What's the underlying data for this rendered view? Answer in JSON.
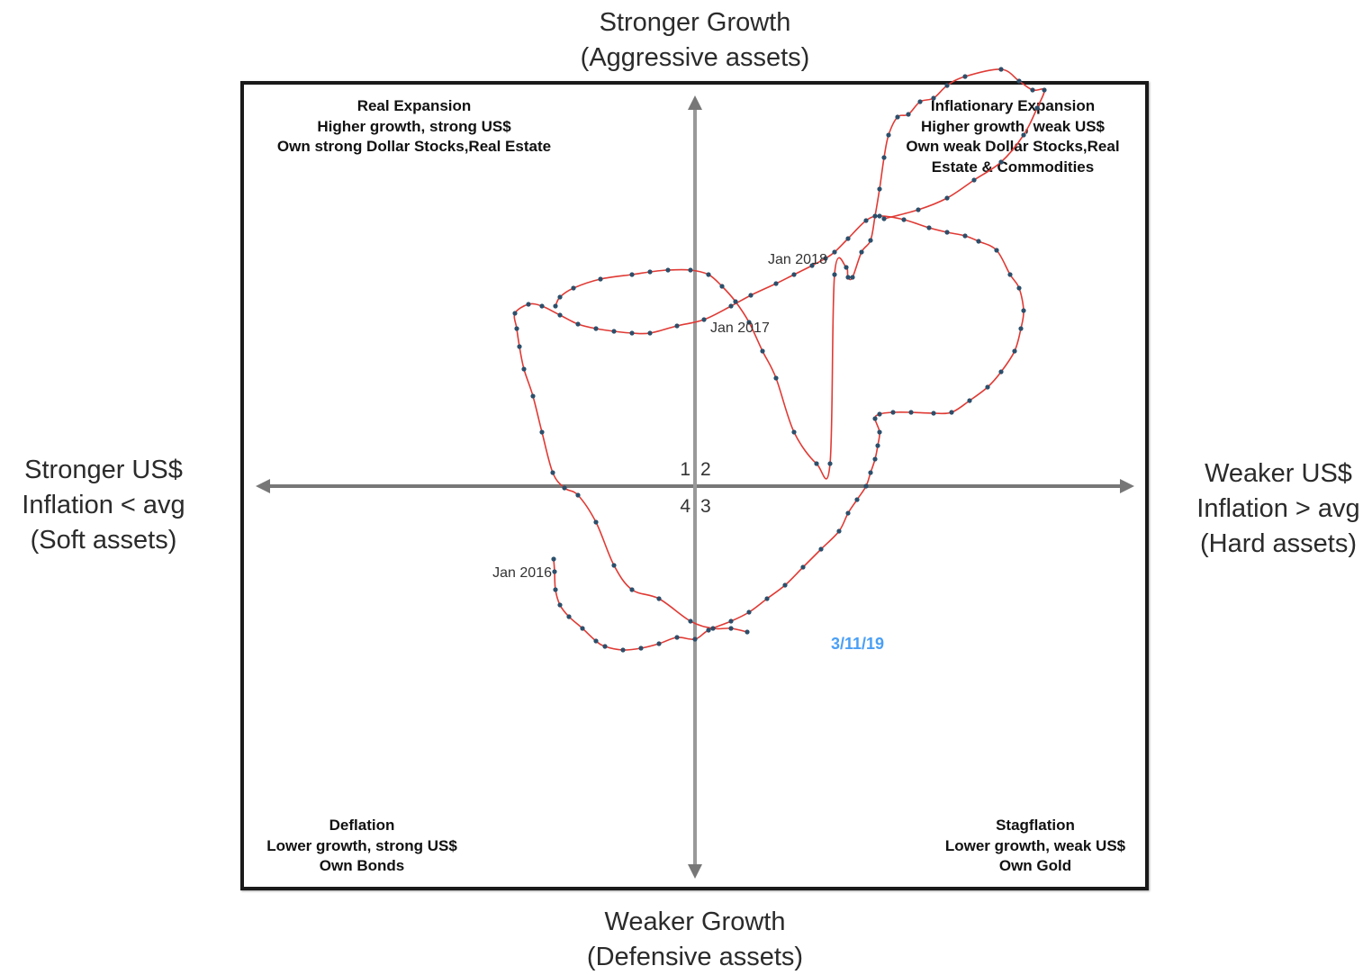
{
  "axes": {
    "top": {
      "line1": "Stronger Growth",
      "line2": "(Aggressive assets)"
    },
    "bottom": {
      "line1": "Weaker Growth",
      "line2": "(Defensive assets)"
    },
    "left": {
      "line1": "Stronger US$",
      "line2": "Inflation < avg",
      "line3": "(Soft assets)"
    },
    "right": {
      "line1": "Weaker US$",
      "line2": "Inflation > avg",
      "line3": "(Hard assets)"
    }
  },
  "quadrants": {
    "top_left": {
      "title": "Real Expansion",
      "line2": "Higher growth, strong US$",
      "line3": "Own strong Dollar Stocks,Real Estate"
    },
    "top_right": {
      "title": "Inflationary Expansion",
      "line2": "Higher growth, weak US$",
      "line3": "Own weak Dollar Stocks,Real",
      "line4": "Estate & Commodities"
    },
    "bottom_left": {
      "title": "Deflation",
      "line2": "Lower growth, strong US$",
      "line3": "Own Bonds"
    },
    "bottom_right": {
      "title": "Stagflation",
      "line2": "Lower growth, weak US$",
      "line3": "Own Gold"
    }
  },
  "quadrant_numbers": [
    "1",
    "2",
    "3",
    "4"
  ],
  "colors": {
    "path_line": "#e03a34",
    "path_dot": "#2c4f6b",
    "axis_arrow": "#777777",
    "current_label": "#4a9ff5"
  },
  "chart_data": {
    "type": "scatter",
    "x_axis": "US$ weakness / inflation (left = stronger US$, right = weaker US$)",
    "y_axis": "Growth (up = stronger, down = weaker)",
    "xlim": [
      -500,
      500
    ],
    "ylim": [
      -445,
      445
    ],
    "annotations": [
      {
        "text": "Jan 2016",
        "x": -157,
        "y": -95
      },
      {
        "text": "Jan 2017",
        "x": 57,
        "y": 177
      },
      {
        "text": "Jan 2018",
        "x": 121,
        "y": 253
      },
      {
        "text": "3/11/19",
        "x": 147,
        "y": -175,
        "highlight": true
      }
    ],
    "series": [
      {
        "name": "",
        "points": [
          [
            -157,
            -81
          ],
          [
            -156,
            -95
          ],
          [
            -155,
            -115
          ],
          [
            -150,
            -132
          ],
          [
            -140,
            -145
          ],
          [
            -125,
            -158
          ],
          [
            -110,
            -172
          ],
          [
            -100,
            -178
          ],
          [
            -80,
            -182
          ],
          [
            -60,
            -180
          ],
          [
            -40,
            -175
          ],
          [
            -20,
            -168
          ],
          [
            0,
            -170
          ],
          [
            15,
            -160
          ],
          [
            40,
            -150
          ],
          [
            60,
            -140
          ],
          [
            80,
            -125
          ],
          [
            100,
            -110
          ],
          [
            120,
            -90
          ],
          [
            140,
            -70
          ],
          [
            160,
            -50
          ],
          [
            170,
            -30
          ],
          [
            180,
            -15
          ],
          [
            190,
            0
          ],
          [
            195,
            15
          ],
          [
            200,
            30
          ],
          [
            203,
            45
          ],
          [
            205,
            60
          ],
          [
            200,
            75
          ],
          [
            205,
            80
          ],
          [
            220,
            82
          ],
          [
            240,
            82
          ],
          [
            265,
            81
          ],
          [
            285,
            82
          ],
          [
            305,
            95
          ],
          [
            325,
            110
          ],
          [
            340,
            127
          ],
          [
            355,
            150
          ],
          [
            362,
            175
          ],
          [
            365,
            195
          ],
          [
            360,
            220
          ],
          [
            350,
            235
          ],
          [
            335,
            262
          ],
          [
            315,
            272
          ],
          [
            300,
            278
          ],
          [
            280,
            282
          ],
          [
            260,
            287
          ],
          [
            232,
            296
          ],
          [
            205,
            300
          ],
          [
            190,
            295
          ],
          [
            170,
            275
          ],
          [
            155,
            260
          ],
          [
            145,
            253
          ],
          [
            130,
            245
          ],
          [
            110,
            235
          ],
          [
            90,
            225
          ],
          [
            62,
            212
          ],
          [
            40,
            200
          ],
          [
            10,
            185
          ],
          [
            -20,
            178
          ],
          [
            -50,
            170
          ],
          [
            -70,
            170
          ],
          [
            -90,
            172
          ],
          [
            -110,
            175
          ],
          [
            -130,
            180
          ],
          [
            -150,
            190
          ],
          [
            -170,
            200
          ],
          [
            -185,
            202
          ],
          [
            -200,
            192
          ],
          [
            -198,
            175
          ],
          [
            -195,
            155
          ],
          [
            -190,
            130
          ],
          [
            -180,
            100
          ],
          [
            -170,
            60
          ],
          [
            -158,
            15
          ],
          [
            -145,
            -2
          ],
          [
            -130,
            -10
          ],
          [
            -110,
            -40
          ],
          [
            -90,
            -88
          ],
          [
            -70,
            -115
          ],
          [
            -40,
            -125
          ],
          [
            -5,
            -150
          ],
          [
            20,
            -158
          ],
          [
            40,
            -158
          ],
          [
            58,
            -162
          ]
        ]
      },
      {
        "name": "",
        "points": [
          [
            -155,
            200
          ],
          [
            -150,
            210
          ],
          [
            -135,
            220
          ],
          [
            -105,
            230
          ],
          [
            -70,
            235
          ],
          [
            -50,
            238
          ],
          [
            -30,
            240
          ],
          [
            -5,
            240
          ],
          [
            15,
            235
          ],
          [
            30,
            222
          ],
          [
            45,
            205
          ],
          [
            60,
            182
          ],
          [
            75,
            150
          ],
          [
            90,
            120
          ],
          [
            110,
            60
          ],
          [
            135,
            25
          ],
          [
            150,
            25
          ],
          [
            155,
            235
          ],
          [
            168,
            243
          ],
          [
            170,
            232
          ],
          [
            175,
            232
          ],
          [
            185,
            260
          ],
          [
            195,
            273
          ],
          [
            200,
            300
          ],
          [
            205,
            330
          ],
          [
            210,
            365
          ],
          [
            215,
            390
          ],
          [
            225,
            410
          ],
          [
            237,
            413
          ],
          [
            250,
            427
          ],
          [
            265,
            431
          ],
          [
            280,
            445
          ],
          [
            300,
            455
          ],
          [
            340,
            463
          ],
          [
            360,
            450
          ],
          [
            375,
            440
          ],
          [
            388,
            440
          ],
          [
            380,
            420
          ],
          [
            365,
            390
          ],
          [
            340,
            360
          ],
          [
            310,
            340
          ],
          [
            280,
            320
          ],
          [
            248,
            307
          ],
          [
            210,
            297
          ]
        ]
      }
    ]
  }
}
